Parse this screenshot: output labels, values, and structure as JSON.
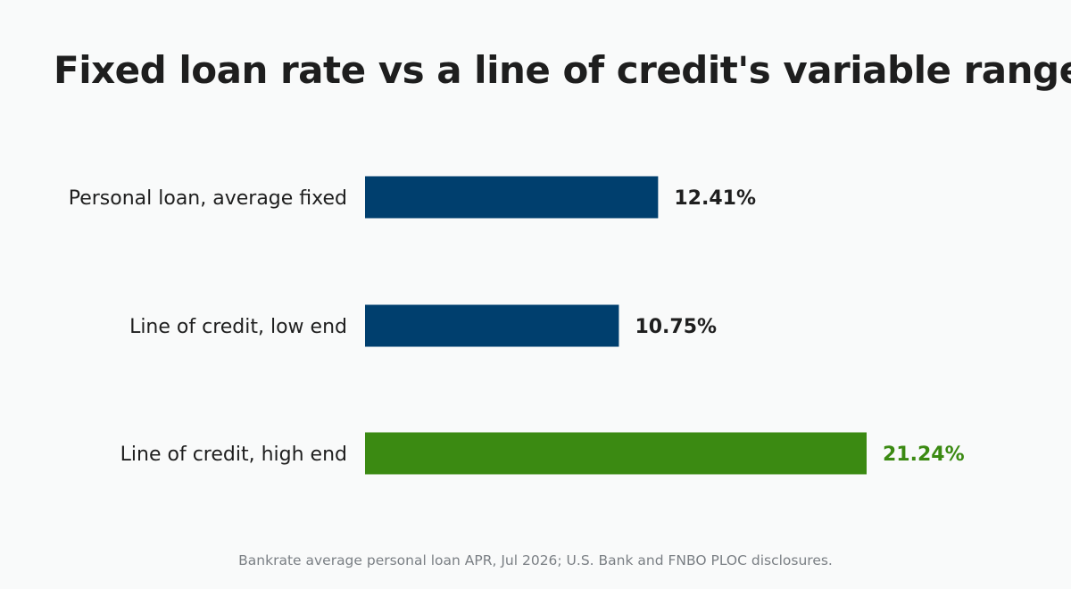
{
  "title": "Fixed loan rate vs a line of credit's variable range",
  "source": "Bankrate average personal loan APR, Jul 2026; U.S. Bank and FNBO PLOC disclosures.",
  "colors": {
    "background": "#f9fafa",
    "primary_bar": "#003f6e",
    "highlight_bar": "#3b8a12",
    "text": "#1e1e1e",
    "source_text": "#7a7f84"
  },
  "chart_data": {
    "type": "bar",
    "orientation": "horizontal",
    "categories": [
      "Personal loan, average fixed",
      "Line of credit, low end",
      "Line of credit, high end"
    ],
    "values": [
      12.41,
      10.75,
      21.24
    ],
    "value_labels": [
      "12.41%",
      "10.75%",
      "21.24%"
    ],
    "bar_colors": [
      "#003f6e",
      "#003f6e",
      "#3b8a12"
    ],
    "label_colors": [
      "#1e1e1e",
      "#1e1e1e",
      "#3b8a12"
    ],
    "xlim": [
      0,
      21.24
    ],
    "grid": false,
    "legend": "none"
  }
}
